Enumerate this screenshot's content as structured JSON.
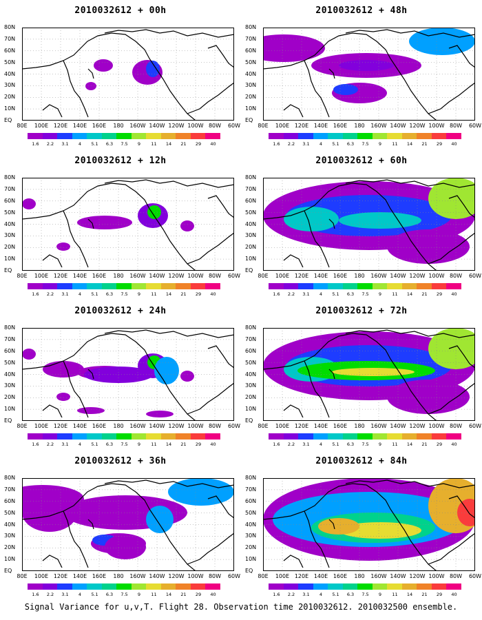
{
  "panels": [
    {
      "title": "2010032612 + 00h",
      "level": 0
    },
    {
      "title": "2010032612 + 48h",
      "level": 2
    },
    {
      "title": "2010032612 + 12h",
      "level": 1
    },
    {
      "title": "2010032612 + 60h",
      "level": 3
    },
    {
      "title": "2010032612 + 24h",
      "level": 1
    },
    {
      "title": "2010032612 + 72h",
      "level": 3
    },
    {
      "title": "2010032612 + 36h",
      "level": 2
    },
    {
      "title": "2010032612 + 84h",
      "level": 4
    }
  ],
  "lat_labels": [
    "80N",
    "70N",
    "60N",
    "50N",
    "40N",
    "30N",
    "20N",
    "10N",
    "EQ"
  ],
  "lon_labels": [
    "80E",
    "100E",
    "120E",
    "140E",
    "160E",
    "180",
    "160W",
    "140W",
    "120W",
    "100W",
    "80W",
    "60W"
  ],
  "colorbar": {
    "labels": [
      "1.6",
      "2.2",
      "3.1",
      "4",
      "5.1",
      "6.3",
      "7.5",
      "9",
      "11",
      "14",
      "21",
      "29",
      "40"
    ],
    "colors": [
      "#a000c8",
      "#8200dc",
      "#1e3cff",
      "#00a0ff",
      "#00c8c8",
      "#00d28c",
      "#00dc00",
      "#a0e632",
      "#e6dc32",
      "#e6af2d",
      "#f08228",
      "#fa3c3c",
      "#f00082"
    ]
  },
  "caption": "Signal Variance for u,v,T. Flight 28. Observation time 2010032612. 2010032500 ensemble."
}
